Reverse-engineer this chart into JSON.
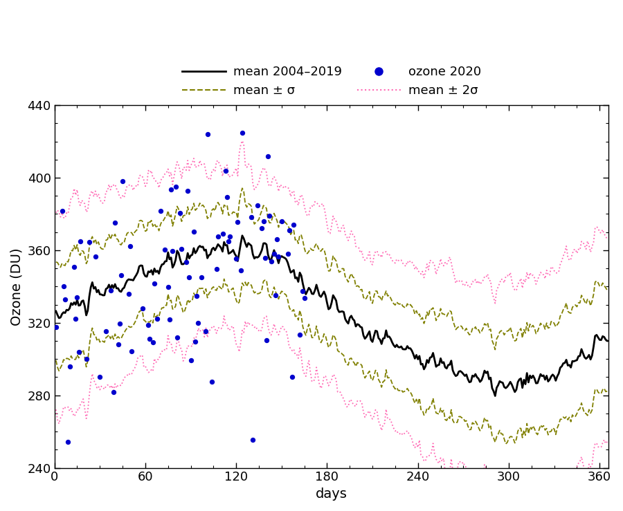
{
  "title": "",
  "xlabel": "days",
  "ylabel": "Ozone (DU)",
  "xlim": [
    0,
    366
  ],
  "ylim": [
    240,
    440
  ],
  "xticks": [
    0,
    60,
    120,
    180,
    240,
    300,
    360
  ],
  "yticks": [
    240,
    280,
    320,
    360,
    400,
    440
  ],
  "mean_color": "#000000",
  "sigma1_color": "#808000",
  "sigma2_color": "#ff69b4",
  "ozone2020_color": "#0000cd",
  "mean_linewidth": 2.0,
  "sigma_linewidth": 1.3,
  "dot_size": 28,
  "legend_fontsize": 13,
  "axis_fontsize": 14,
  "tick_fontsize": 13
}
